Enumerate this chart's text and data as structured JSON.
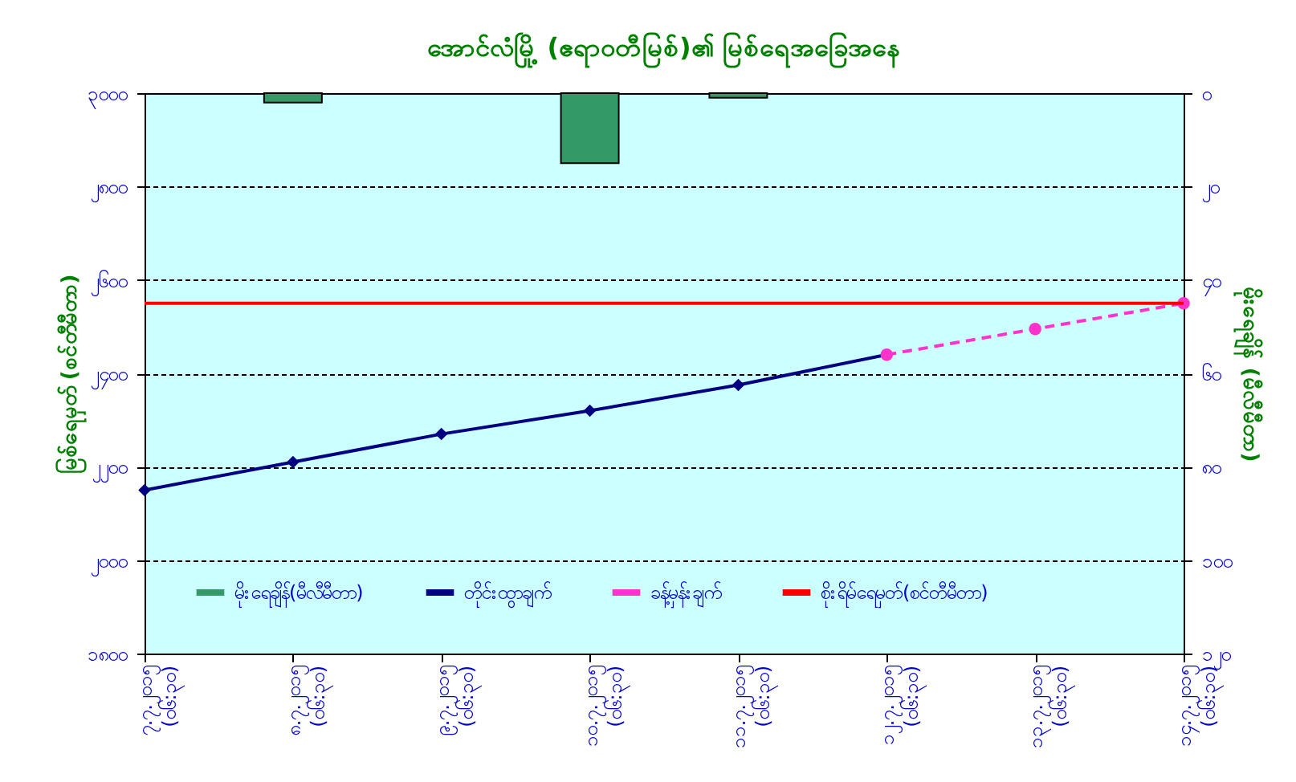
{
  "chart_data": {
    "type": "line",
    "title": "အောင်လံမြို့ (ဧရာဝတီမြစ်)၏ မြစ်ရေအခြေအနေ",
    "categories": [
      "၇.၇.၂၀၁၅ (၀၆:၃၀)",
      "၈.၇.၂၀၁၅ (၀၆:၃၀)",
      "၉.၇.၂၀၁၅ (၀၆:၃၀)",
      "၁၀.၇.၂၀၁၅ (၀၆:၃၀)",
      "၁၁.၇.၂၀၁၅ (၀၆:၃၀)",
      "၁၂.၇.၂၀၁၅ (၀၆:၃၀)",
      "၁၃.၇.၂၀၁၅ (၀၆:၃၀)",
      "၁၄.၇.၂၀၁၅ (၀၆:၃၀)"
    ],
    "series": [
      {
        "name": "မိုးရေချိန်(မီလီမီတာ)",
        "type": "bar",
        "axis": "y2",
        "color": "#339966",
        "values": [
          null,
          2,
          null,
          15,
          1,
          null,
          null,
          null
        ]
      },
      {
        "name": "တိုင်းထွာချက်",
        "color": "#000080",
        "marker": "diamond",
        "line_style": "solid",
        "values": [
          2150,
          2210,
          2270,
          2320,
          2375,
          2440,
          null,
          null
        ]
      },
      {
        "name": "ခန့်မှန်းချက်",
        "color": "#ff33cc",
        "marker": "circle",
        "line_style": "dashed",
        "values": [
          null,
          null,
          null,
          null,
          null,
          2440,
          2495,
          2550
        ]
      }
    ],
    "ref_lines": [
      {
        "axis": "y",
        "value": 2550,
        "label": "စိုးရိမ်ရေမှတ်(စင်တီမီတာ)",
        "color": "#ff0000"
      }
    ],
    "ylabel": "မြစ်ရေမှတ် (စင်တီမီတာ)",
    "y2label": "မိုးရေချိန် (မီလီမီတာ)",
    "ylim": [
      1800,
      3000
    ],
    "yticks": [
      {
        "value": 1800,
        "label": "၁၈၀၀"
      },
      {
        "value": 2000,
        "label": "၂၀၀၀"
      },
      {
        "value": 2200,
        "label": "၂၂၀၀"
      },
      {
        "value": 2400,
        "label": "၂၄၀၀"
      },
      {
        "value": 2600,
        "label": "၂၆၀၀"
      },
      {
        "value": 2800,
        "label": "၂၈၀၀"
      },
      {
        "value": 3000,
        "label": "၃၀၀၀"
      }
    ],
    "y2lim": [
      120,
      0
    ],
    "y2ticks": [
      {
        "value": 0,
        "label": "၀"
      },
      {
        "value": 20,
        "label": "၂၀"
      },
      {
        "value": 40,
        "label": "၄၀"
      },
      {
        "value": 60,
        "label": "၆၀"
      },
      {
        "value": 80,
        "label": "၈၀"
      },
      {
        "value": 100,
        "label": "၁၀၀"
      },
      {
        "value": 120,
        "label": "၁၂၀"
      }
    ],
    "grid": "y",
    "legend": "bottom"
  }
}
